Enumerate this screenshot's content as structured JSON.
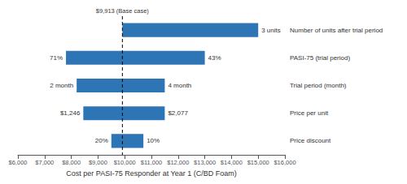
{
  "chart_data": {
    "type": "bar",
    "orientation": "horizontal",
    "xlabel": "Cost per PASI-75 Responder at Year 1 (C/BD Foam)",
    "categories": [
      "Number of units after trial period",
      "PASI-75 (trial period)",
      "Trial period (month)",
      "Price per unit",
      "Price discount"
    ],
    "low_values": [
      9913,
      7800,
      8200,
      8450,
      9500
    ],
    "high_values": [
      15000,
      13000,
      11500,
      11500,
      10700
    ],
    "low_labels": [
      null,
      "71%",
      "2 month",
      "$1,246",
      "20%"
    ],
    "high_labels": [
      "3 units",
      "43%",
      "4 month",
      "$2,077",
      "10%"
    ],
    "color": "#2E75B6",
    "xlim": [
      6000,
      16000
    ],
    "xticks": [
      {
        "value": 6000,
        "label": "$6,000"
      },
      {
        "value": 7000,
        "label": "$7,000"
      },
      {
        "value": 8000,
        "label": "$8,000"
      },
      {
        "value": 9000,
        "label": "$9,000"
      },
      {
        "value": 10000,
        "label": "$10,000"
      },
      {
        "value": 11000,
        "label": "$11,000"
      },
      {
        "value": 12000,
        "label": "$12,000"
      },
      {
        "value": 13000,
        "label": "$13,000"
      },
      {
        "value": 14000,
        "label": "$14,000"
      },
      {
        "value": 15000,
        "label": "$15,000"
      },
      {
        "value": 16000,
        "label": "$16,000"
      }
    ],
    "base_case": 9913,
    "base_case_label": "$9,913 (Base case)",
    "grid": false
  }
}
